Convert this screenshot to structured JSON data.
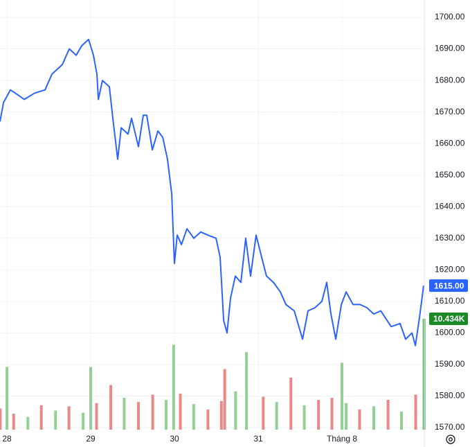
{
  "chart_data": {
    "type": "line",
    "xlim": [
      -0.083,
      4.983
    ],
    "xticks": [
      {
        "value": 0,
        "label": "28"
      },
      {
        "value": 1,
        "label": "29"
      },
      {
        "value": 2,
        "label": "30"
      },
      {
        "value": 3,
        "label": "31"
      },
      {
        "value": 4,
        "label": "Tháng 8"
      }
    ],
    "ylim": [
      1569.35,
      1705.49
    ],
    "yticks": [
      {
        "value": 1570,
        "label": "1570.00"
      },
      {
        "value": 1580,
        "label": "1580.00"
      },
      {
        "value": 1590,
        "label": "1590.00"
      },
      {
        "value": 1600,
        "label": "1600.00"
      },
      {
        "value": 1610,
        "label": "1610.00"
      },
      {
        "value": 1620,
        "label": "1620.00"
      },
      {
        "value": 1630,
        "label": "1630.00"
      },
      {
        "value": 1640,
        "label": "1640.00"
      },
      {
        "value": 1650,
        "label": "1650.00"
      },
      {
        "value": 1660,
        "label": "1660.00"
      },
      {
        "value": 1670,
        "label": "1670.00"
      },
      {
        "value": 1680,
        "label": "1680.00"
      },
      {
        "value": 1690,
        "label": "1690.00"
      },
      {
        "value": 1700,
        "label": "1700.00"
      }
    ],
    "grid": true,
    "series": [
      {
        "color": "#2962ff",
        "x": [
          -0.083,
          -0.041,
          0.041,
          0.099,
          0.207,
          0.331,
          0.455,
          0.537,
          0.661,
          0.744,
          0.826,
          0.893,
          0.975,
          1.033,
          1.074,
          1.091,
          1.14,
          1.223,
          1.264,
          1.322,
          1.364,
          1.446,
          1.488,
          1.57,
          1.628,
          1.669,
          1.736,
          1.802,
          1.86,
          1.917,
          1.967,
          1.983,
          2.0,
          2.033,
          2.083,
          2.149,
          2.231,
          2.314,
          2.397,
          2.496,
          2.545,
          2.587,
          2.628,
          2.669,
          2.727,
          2.793,
          2.851,
          2.909,
          2.975,
          3.041,
          3.099,
          3.182,
          3.264,
          3.331,
          3.43,
          3.529,
          3.595,
          3.678,
          3.76,
          3.818,
          3.868,
          3.926,
          3.992,
          4.05,
          4.132,
          4.215,
          4.298,
          4.38,
          4.463,
          4.587,
          4.694,
          4.76,
          4.835,
          4.876,
          4.926,
          4.975
        ],
        "values": [
          1667,
          1673,
          1677,
          1676,
          1674,
          1676,
          1677,
          1682,
          1685,
          1690,
          1688,
          1691,
          1693,
          1688,
          1682,
          1674,
          1680,
          1678,
          1668,
          1655,
          1665,
          1663,
          1668,
          1659,
          1669,
          1669,
          1658,
          1664,
          1662,
          1655,
          1644,
          1633,
          1622,
          1631,
          1628,
          1633,
          1630,
          1632,
          1631,
          1630,
          1624,
          1604,
          1600,
          1611,
          1618,
          1616,
          1630,
          1618,
          1631,
          1624,
          1618,
          1616,
          1613,
          1609,
          1607,
          1598,
          1607,
          1608,
          1610,
          1616,
          1606,
          1598,
          1609,
          1613,
          1609,
          1609,
          1608,
          1606,
          1607,
          1602,
          1603,
          1598,
          1600,
          1596,
          1605,
          1615
        ]
      }
    ],
    "volume": {
      "x": [
        -0.08,
        0,
        0.08,
        0.25,
        0.41,
        0.58,
        0.74,
        0.91,
        1.0,
        1.07,
        1.24,
        1.4,
        1.57,
        1.74,
        1.9,
        1.99,
        2.07,
        2.23,
        2.4,
        2.56,
        2.6,
        2.73,
        2.86,
        3.06,
        3.22,
        3.39,
        3.55,
        3.72,
        3.88,
        4.0,
        4.05,
        4.21,
        4.38,
        4.55,
        4.71,
        4.88,
        4.98
      ],
      "values": [
        2.0,
        5.9,
        1.5,
        1.2,
        2.3,
        1.8,
        2.2,
        1.6,
        5.9,
        2.5,
        4.2,
        3.0,
        2.6,
        3.3,
        2.8,
        8.0,
        3.4,
        2.4,
        1.9,
        2.7,
        5.7,
        3.6,
        7.3,
        3.1,
        2.6,
        4.9,
        2.3,
        2.8,
        3.0,
        6.3,
        2.5,
        1.9,
        2.2,
        2.8,
        1.7,
        3.3,
        10.434
      ],
      "colors": [
        "#e57373",
        "#81c784",
        "#e57373",
        "#81c784",
        "#e57373",
        "#81c784",
        "#e57373",
        "#81c784",
        "#81c784",
        "#e57373",
        "#e57373",
        "#81c784",
        "#e57373",
        "#e57373",
        "#81c784",
        "#81c784",
        "#e57373",
        "#81c784",
        "#e57373",
        "#e57373",
        "#e57373",
        "#81c784",
        "#81c784",
        "#e57373",
        "#81c784",
        "#e57373",
        "#81c784",
        "#e57373",
        "#e57373",
        "#81c784",
        "#81c784",
        "#e57373",
        "#81c784",
        "#e57373",
        "#81c784",
        "#e57373",
        "#4caf50"
      ]
    },
    "last_price": {
      "value": 1615,
      "label": "1615.00",
      "color": "#2962ff"
    },
    "last_volume": {
      "value": 10.434,
      "label": "10.434K",
      "color": "#1b8a24"
    }
  }
}
